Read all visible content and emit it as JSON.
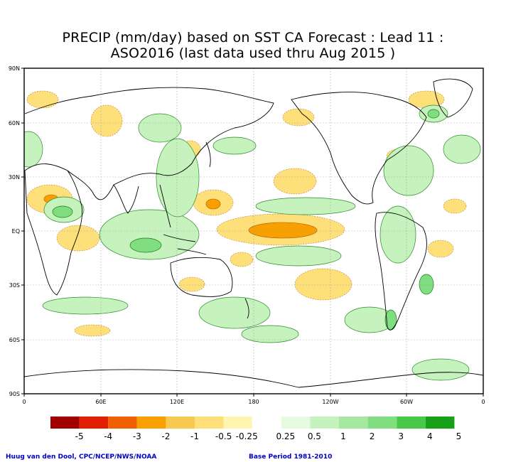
{
  "title": {
    "line1": "PRECIP (mm/day) based on SST CA Forecast : Lead 11 :",
    "line2": "ASO2016 (last data used thru Aug 2015 )"
  },
  "axes": {
    "lat_labels": [
      "90N",
      "60N",
      "30N",
      "EQ",
      "30S",
      "60S",
      "90S"
    ],
    "lon_labels": [
      "0",
      "60E",
      "120E",
      "180",
      "120W",
      "60W",
      "0"
    ]
  },
  "legend": {
    "labels": [
      "-5",
      "-4",
      "-3",
      "-2",
      "-1",
      "-0.5",
      "-0.25",
      "0.25",
      "0.5",
      "1",
      "2",
      "3",
      "4",
      "5"
    ],
    "colors": [
      "#a00000",
      "#e02000",
      "#f06000",
      "#f8a000",
      "#f8c850",
      "#fde07a",
      "#fff5b0",
      "#ffffff",
      "#e6fae1",
      "#c6f2be",
      "#a6e8a0",
      "#80dd80",
      "#48c848",
      "#18a018"
    ]
  },
  "credits": {
    "left": "Huug van den Dool, CPC/NCEP/NWS/NOAA",
    "right": "Base Period 1981-2010"
  }
}
